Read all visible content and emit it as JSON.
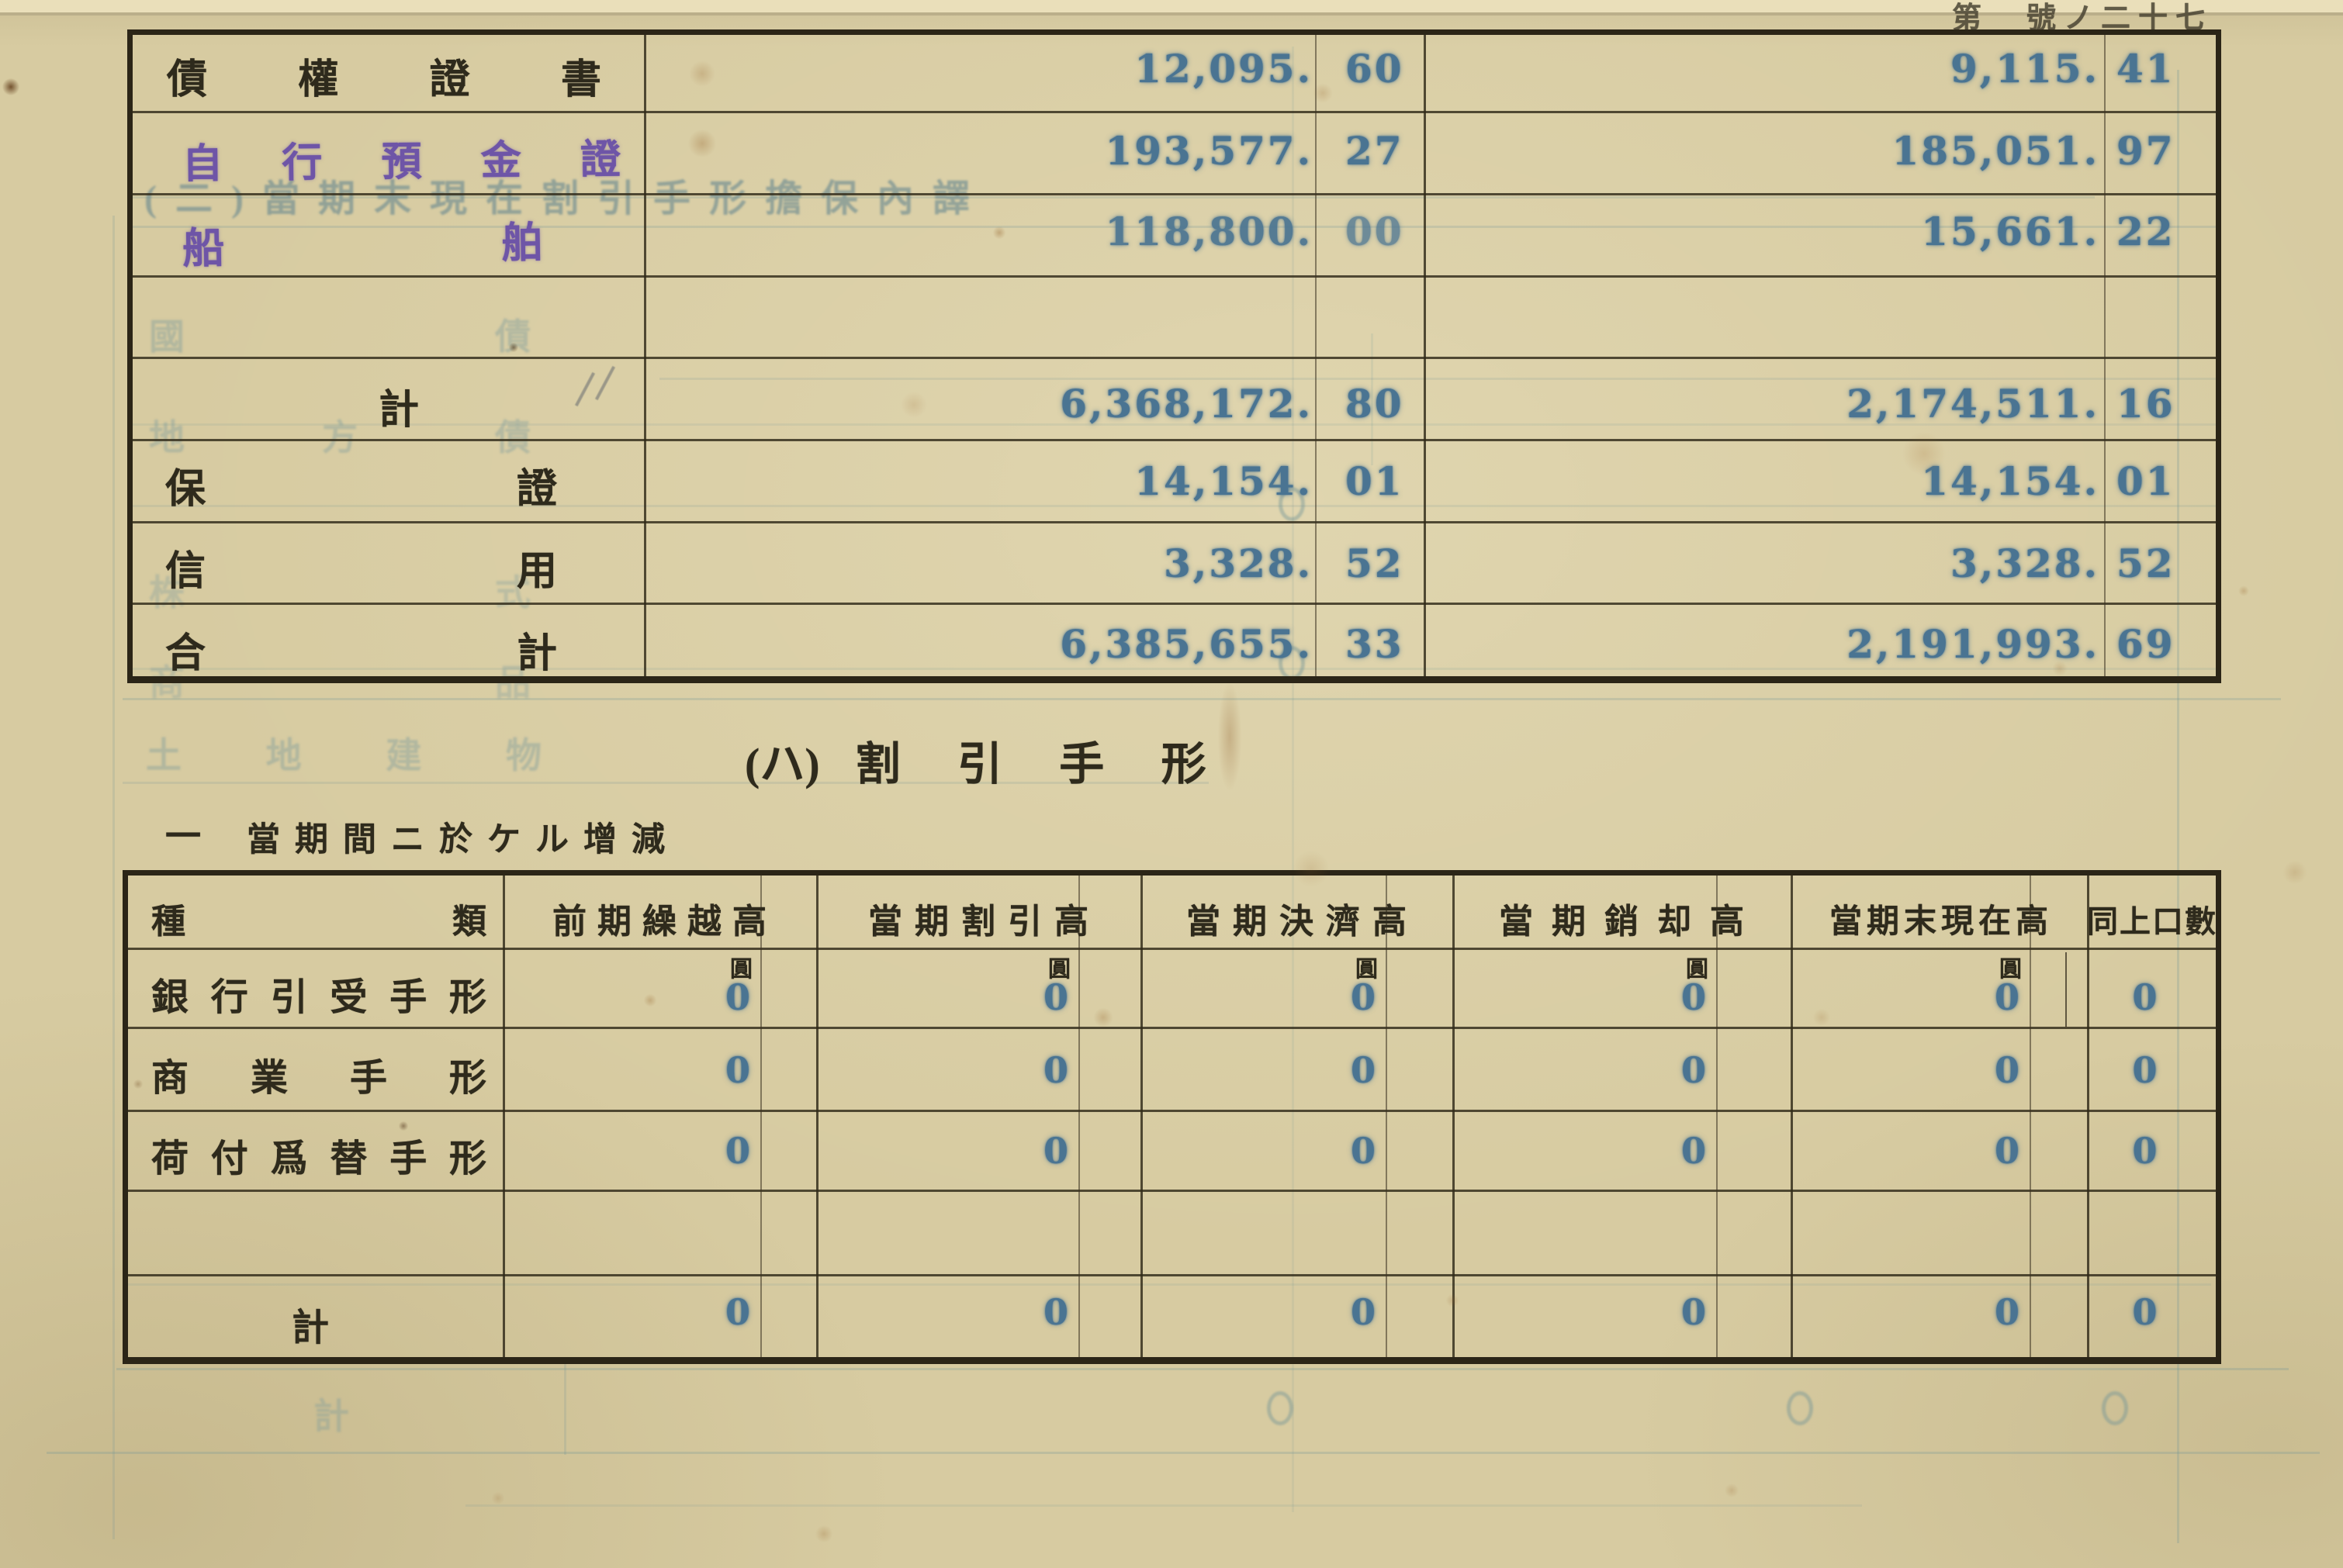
{
  "page": {
    "corner_label": "第　號ノ二十七",
    "heading_prefix": "(ハ)",
    "heading_title": "割引手形",
    "subtitle_marker": "一",
    "subtitle_text": "當期間ニ於ケル增減"
  },
  "top_table": {
    "rows": [
      {
        "label": "債權證書",
        "c1i": "12,095.",
        "c1d": "60",
        "c2i": "9,115.",
        "c2d": "41"
      },
      {
        "label": "自行預金證",
        "c1i": "193,577.",
        "c1d": "27",
        "c2i": "185,051.",
        "c2d": "97"
      },
      {
        "label": "船舶",
        "c1i": "118,800.",
        "c1d": "00",
        "c2i": "15,661.",
        "c2d": "22"
      },
      {
        "label": "",
        "c1i": "",
        "c1d": "",
        "c2i": "",
        "c2d": ""
      },
      {
        "label": "計",
        "c1i": "6,368,172.",
        "c1d": "80",
        "c2i": "2,174,511.",
        "c2d": "16"
      },
      {
        "label": "保證",
        "c1i": "14,154.",
        "c1d": "01",
        "c2i": "14,154.",
        "c2d": "01"
      },
      {
        "label": "信用",
        "c1i": "3,328.",
        "c1d": "52",
        "c2i": "3,328.",
        "c2d": "52"
      },
      {
        "label": "合計",
        "c1i": "6,385,655.",
        "c1d": "33",
        "c2i": "2,191,993.",
        "c2d": "69"
      }
    ]
  },
  "bottom_table": {
    "col_headers": [
      "種類",
      "前期繰越高",
      "當期割引高",
      "當期決濟高",
      "當期銷却高",
      "當期末現在高",
      "同上口數"
    ],
    "unit_label": "圓",
    "rows": [
      {
        "label": "銀行引受手形",
        "v": [
          "0",
          "0",
          "0",
          "0",
          "0",
          "0"
        ]
      },
      {
        "label": "商業手形",
        "v": [
          "0",
          "0",
          "0",
          "0",
          "0",
          "0"
        ]
      },
      {
        "label": "荷付爲替手形",
        "v": [
          "0",
          "0",
          "0",
          "0",
          "0",
          "0"
        ]
      },
      {
        "label": "",
        "v": [
          "",
          "",
          "",
          "",
          "",
          ""
        ]
      },
      {
        "label": "計",
        "v": [
          "0",
          "0",
          "0",
          "0",
          "0",
          "0"
        ]
      }
    ]
  },
  "bleedthrough": {
    "title": "(二)當期末現在割引手形擔保內譯",
    "labels": [
      "國債",
      "地方債",
      "株式",
      "商品",
      "土地建物",
      "計"
    ]
  }
}
